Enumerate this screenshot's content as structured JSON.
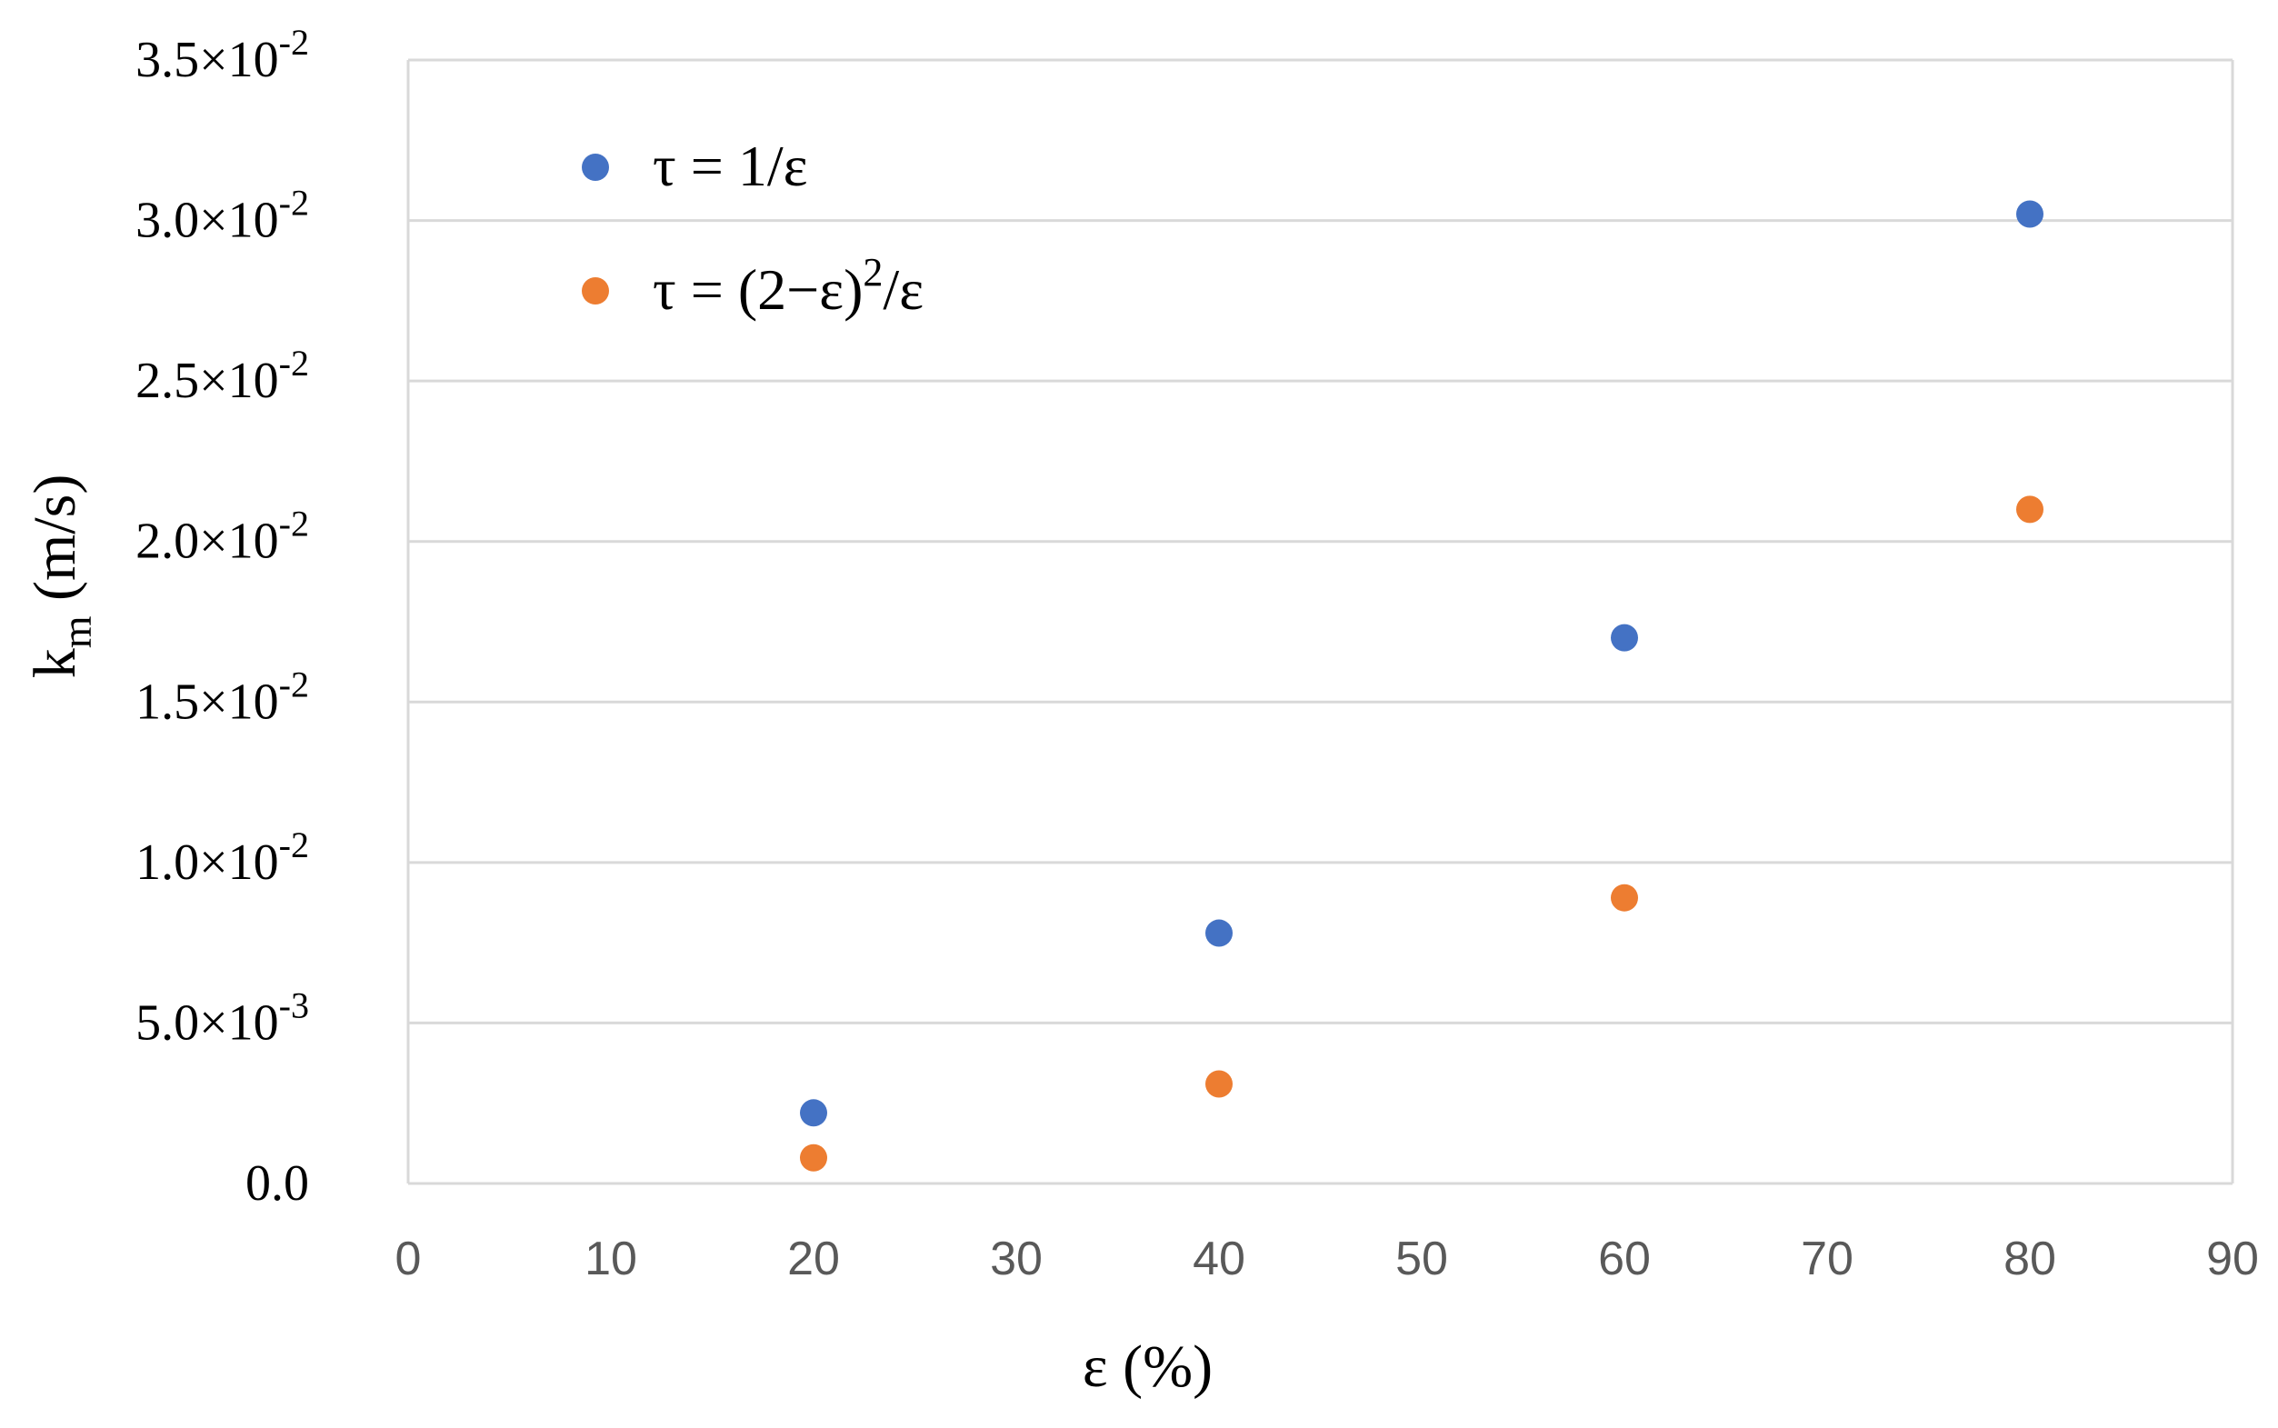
{
  "chart_data": {
    "type": "scatter",
    "xlabel": "ε (%)",
    "ylabel": {
      "main": "k",
      "subscript": "m",
      "unit": " (m/s)"
    },
    "xlim": [
      0,
      90
    ],
    "ylim": [
      0,
      0.035
    ],
    "x_ticks": [
      0,
      10,
      20,
      30,
      40,
      50,
      60,
      70,
      80,
      90
    ],
    "x_tick_labels": [
      "0",
      "10",
      "20",
      "30",
      "40",
      "50",
      "60",
      "70",
      "80",
      "90"
    ],
    "y_ticks": [
      0,
      0.005,
      0.01,
      0.015,
      0.02,
      0.025,
      0.03,
      0.035
    ],
    "y_tick_labels": [
      {
        "text": "0.0",
        "mantissa": "",
        "exponent": ""
      },
      {
        "text": "5.0×10-3",
        "mantissa": "5.0×10",
        "exponent": "-3"
      },
      {
        "text": "1.0×10-2",
        "mantissa": "1.0×10",
        "exponent": "-2"
      },
      {
        "text": "1.5×10-2",
        "mantissa": "1.5×10",
        "exponent": "-2"
      },
      {
        "text": "2.0×10-2",
        "mantissa": "2.0×10",
        "exponent": "-2"
      },
      {
        "text": "2.5×10-2",
        "mantissa": "2.5×10",
        "exponent": "-2"
      },
      {
        "text": "3.0×10-2",
        "mantissa": "3.0×10",
        "exponent": "-2"
      },
      {
        "text": "3.5×10-2",
        "mantissa": "3.5×10",
        "exponent": "-2"
      }
    ],
    "grid": "horizontal",
    "legend_position": "top-left",
    "series": [
      {
        "name": "τ = 1/ε",
        "legend_parts": {
          "before": "τ = 1/ε",
          "sup": "",
          "after": ""
        },
        "color": "#4472C4",
        "x": [
          20,
          40,
          60,
          80
        ],
        "y": [
          0.0022,
          0.0078,
          0.017,
          0.0302
        ]
      },
      {
        "name": "τ = (2−ε)²/ε",
        "legend_parts": {
          "before": "τ = (2−ε)",
          "sup": "2",
          "after": "/ε"
        },
        "color": "#ED7D31",
        "x": [
          20,
          40,
          60,
          80
        ],
        "y": [
          0.0008,
          0.0031,
          0.0089,
          0.021
        ]
      }
    ]
  }
}
